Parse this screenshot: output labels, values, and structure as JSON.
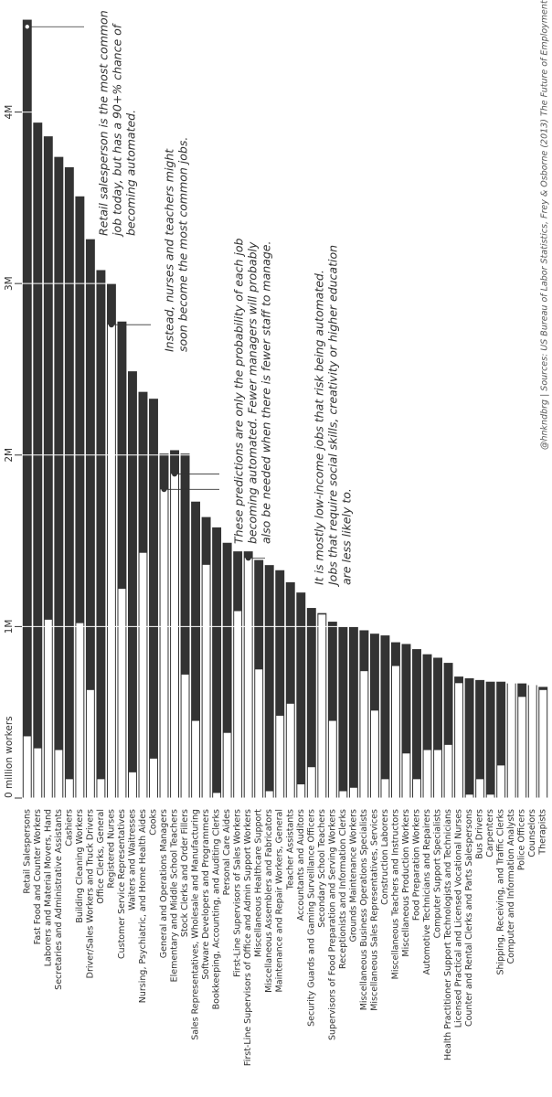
{
  "chart_data": {
    "type": "bar",
    "categories": [
      "Retail Salespersons",
      "Fast Food and Counter Workers",
      "Laborers and Material Movers, Hand",
      "Secretaries and Administrative Assistants",
      "Cashiers",
      "Building Cleaning Workers",
      "Driver/Sales Workers and Truck Drivers",
      "Office Clerks, General",
      "Registered Nurses",
      "Customer Service Representatives",
      "Waiters and Waitresses",
      "Nursing, Psychiatric, and Home Health Aides",
      "Cooks",
      "General and Operations Managers",
      "Elementary and Middle School Teachers",
      "Stock Clerks and Order Fillers",
      "Sales Representatives, Wholesale and Manufacturing",
      "Software Developers and Programmers",
      "Bookkeeping, Accounting, and Auditing Clerks",
      "Personal Care Aides",
      "First-Line Supervisors of Sales Workers",
      "First-Line Supervisors of Office and Admin Support Workers",
      "Miscellaneous Healthcare Support",
      "Miscellaneous Assemblers and Fabricators",
      "Maintenance and Repair Workers, General",
      "Teacher Assistants",
      "Accountants and Auditors",
      "Security Guards and Gaming Surveillance Officers",
      "Secondary School Teachers",
      "Supervisors of Food Preparation and Serving Workers",
      "Receptionists and Information Clerks",
      "Grounds Maintenance Workers",
      "Miscellaneous Business Operations Specialists",
      "Miscellaneous Sales Representatives, Services",
      "Construction Laborers",
      "Miscellaneous Teachers and Instructors",
      "Miscellaneous Production Workers",
      "Food Preparation Workers",
      "Automotive Technicians and Repairers",
      "Computer Support Specialists",
      "Health Practitioner Support Technologists and Technicians",
      "Licensed Practical and Licensed Vocational Nurses",
      "Counter and Rental Clerks and Parts Salespersons",
      "Bus Drivers",
      "Carpenters",
      "Shipping, Receiving, and Traffic Clerks",
      "Computer and Information Analysts",
      "Police Officers",
      "Counselors",
      "Therapists"
    ],
    "series": [
      {
        "color": "#333333",
        "values": [
          4.54,
          3.94,
          3.86,
          3.74,
          3.68,
          3.51,
          3.26,
          3.08,
          3.0,
          2.78,
          2.49,
          2.37,
          2.33,
          2.01,
          2.03,
          2.01,
          1.73,
          1.64,
          1.58,
          1.49,
          1.44,
          1.44,
          1.39,
          1.36,
          1.33,
          1.26,
          1.2,
          1.11,
          1.08,
          1.03,
          1.0,
          1.0,
          0.98,
          0.96,
          0.95,
          0.91,
          0.9,
          0.87,
          0.84,
          0.82,
          0.79,
          0.71,
          0.7,
          0.69,
          0.68,
          0.68,
          0.67,
          0.67,
          0.66,
          0.65
        ]
      },
      {
        "color": "#ffffff",
        "values": [
          0.36,
          0.29,
          1.04,
          0.28,
          0.11,
          1.02,
          0.63,
          0.11,
          2.76,
          1.22,
          0.15,
          1.43,
          0.23,
          1.8,
          1.89,
          0.72,
          0.45,
          1.36,
          0.03,
          0.38,
          1.09,
          1.4,
          0.75,
          0.04,
          0.48,
          0.55,
          0.08,
          0.18,
          1.07,
          0.45,
          0.04,
          0.06,
          0.74,
          0.51,
          0.11,
          0.77,
          0.26,
          0.11,
          0.28,
          0.28,
          0.31,
          0.67,
          0.02,
          0.11,
          0.02,
          0.19,
          0.67,
          0.59,
          0.66,
          0.63
        ]
      }
    ],
    "ylim": [
      0,
      4.6
    ],
    "yticks": [
      {
        "value": 0,
        "label": "0 million workers"
      },
      {
        "value": 1,
        "label": "1M"
      },
      {
        "value": 2,
        "label": "2M"
      },
      {
        "value": 3,
        "label": "3M"
      },
      {
        "value": 4,
        "label": "4M"
      }
    ],
    "grid": true,
    "annotations": [
      {
        "lines": [
          "Retail salesperson is the most common",
          "job today, but has a 90+% chance of",
          "becoming automated."
        ]
      },
      {
        "lines": [
          "Instead, nurses and teachers might",
          "soon become the most common jobs."
        ]
      },
      {
        "lines": [
          "These predictions are only the probability of each job",
          "becoming automated. Fewer managers will probably",
          "also be needed when there is fewer staff to manage."
        ]
      },
      {
        "lines": [
          "It is mostly low-income jobs that risk being automated.",
          "Jobs that require social skills, creativity or higher education",
          "are less likely to."
        ]
      }
    ],
    "source": "@hnkndbrg | Sources: US Bureau of Labor Statistics, Frey & Osborne (2013) The Future of Employment"
  }
}
